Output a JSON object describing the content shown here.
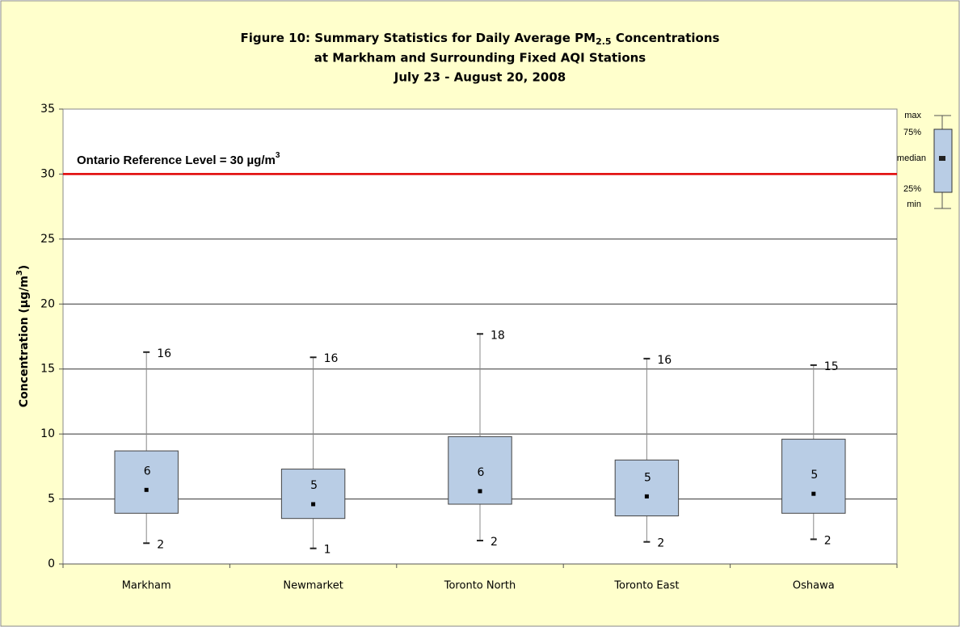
{
  "chart_data": {
    "type": "box",
    "title": {
      "line1": {
        "before": "Figure 10:  Summary Statistics for Daily Average PM",
        "sub": "2.5",
        "after": " Concentrations"
      },
      "line2": "at Markham and Surrounding Fixed AQI Stations",
      "line3": "July 23 - August 20, 2008"
    },
    "y_label": {
      "before": "Concentration (µg/m",
      "sup": "3",
      "after": ")"
    },
    "categories": [
      "Markham",
      "Newmarket",
      "Toronto North",
      "Toronto East",
      "Oshawa"
    ],
    "min": [
      1.6,
      1.2,
      1.8,
      1.7,
      1.9
    ],
    "q1": [
      3.9,
      3.5,
      4.6,
      3.7,
      3.9
    ],
    "median": [
      5.7,
      4.6,
      5.6,
      5.2,
      5.4
    ],
    "q3": [
      8.7,
      7.3,
      9.8,
      8.0,
      9.6
    ],
    "max": [
      16.3,
      15.9,
      17.7,
      15.8,
      15.3
    ],
    "min_labels": [
      "2",
      "1",
      "2",
      "2",
      "2"
    ],
    "median_labels": [
      "6",
      "5",
      "6",
      "5",
      "5"
    ],
    "max_labels": [
      "16",
      "16",
      "18",
      "16",
      "15"
    ],
    "box_color": "#b9cde5",
    "reference_line": {
      "value": 30,
      "color": "#e00000",
      "label": {
        "before": "Ontario  Reference Level = 30 µg/m",
        "sup": "3"
      }
    },
    "ylim": [
      0,
      35
    ],
    "yticks": [
      0,
      5,
      10,
      15,
      20,
      25,
      30,
      35
    ],
    "grid": true,
    "legend_key": {
      "max": "max",
      "q3": "75%",
      "median": "median",
      "q1": "25%",
      "min": "min"
    }
  }
}
